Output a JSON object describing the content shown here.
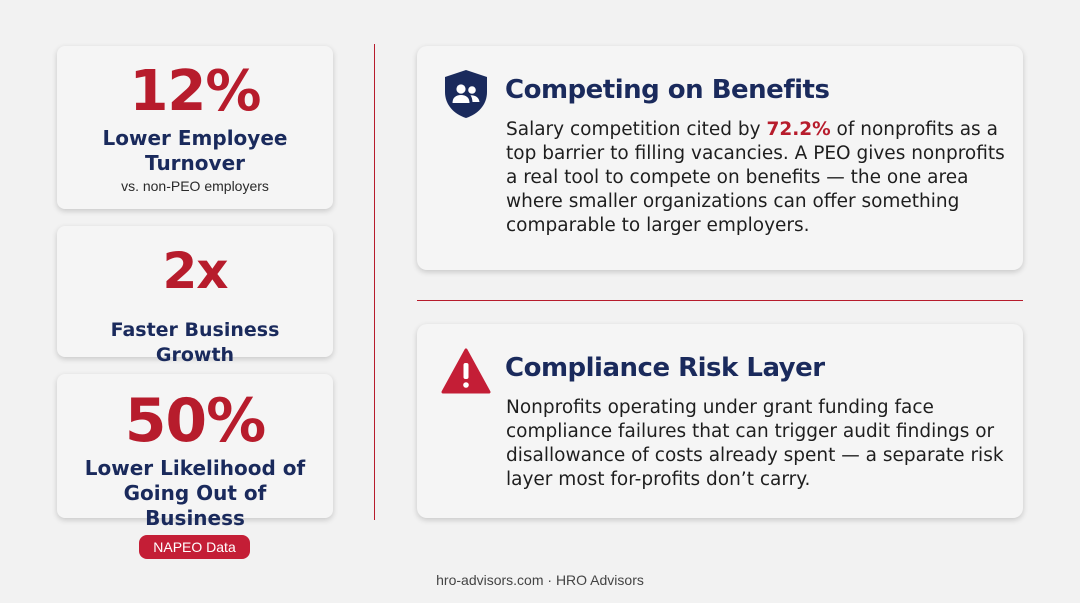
{
  "stats": [
    {
      "value": "12%",
      "label_line1": "Lower Employee",
      "label_line2": "Turnover",
      "sub": "vs. non-PEO employers"
    },
    {
      "value": "2x",
      "label_line1": "Faster Business Growth"
    },
    {
      "value": "50%",
      "label_line1": "Lower Likelihood of",
      "label_line2": "Going Out of Business"
    }
  ],
  "source_badge": "NAPEO Data",
  "cards": {
    "benefits": {
      "icon": "shield-people-icon",
      "title": "Competing on Benefits",
      "body_before": "Salary competition cited by ",
      "body_highlight": "72.2%",
      "body_after": " of nonprofits as a top barrier to filling vacancies. A PEO gives nonprofits a real tool to compete on benefits — the one area where smaller organizations can offer something comparable to larger employers."
    },
    "compliance": {
      "icon": "warning-triangle-icon",
      "title": "Compliance Risk Layer",
      "body": "Nonprofits operating under grant funding face compliance failures that can trigger audit findings or disallowance of costs already spent — a separate risk layer most for-profits don’t carry."
    }
  },
  "footer": "hro-advisors.com · HRO Advisors",
  "colors": {
    "accent_red": "#b71c2c",
    "navy": "#1a2a5c",
    "badge_red": "#c41e36",
    "background": "#f2f2f2",
    "card": "#f5f5f5"
  }
}
